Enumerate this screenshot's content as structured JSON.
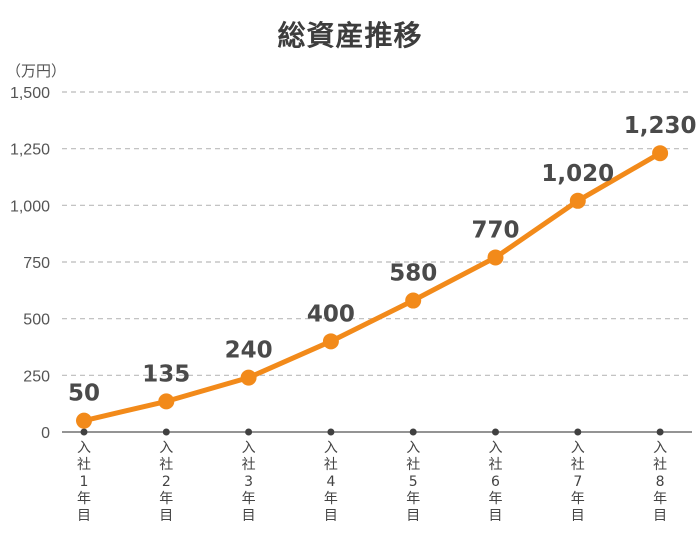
{
  "chart_data": {
    "type": "line",
    "title": "総資産推移",
    "unit_label": "（万円）",
    "categories": [
      [
        "入",
        "社",
        "1",
        "年",
        "目"
      ],
      [
        "入",
        "社",
        "2",
        "年",
        "目"
      ],
      [
        "入",
        "社",
        "3",
        "年",
        "目"
      ],
      [
        "入",
        "社",
        "4",
        "年",
        "目"
      ],
      [
        "入",
        "社",
        "5",
        "年",
        "目"
      ],
      [
        "入",
        "社",
        "6",
        "年",
        "目"
      ],
      [
        "入",
        "社",
        "7",
        "年",
        "目"
      ],
      [
        "入",
        "社",
        "8",
        "年",
        "目"
      ]
    ],
    "values": [
      50,
      135,
      240,
      400,
      580,
      770,
      1020,
      1230
    ],
    "data_labels": [
      "50",
      "135",
      "240",
      "400",
      "580",
      "770",
      "1,020",
      "1,230"
    ],
    "y_ticks": [
      0,
      250,
      500,
      750,
      1000,
      1250,
      1500
    ],
    "y_tick_labels": [
      "0",
      "250",
      "500",
      "750",
      "1,000",
      "1,250",
      "1,500"
    ],
    "ylim": [
      0,
      1500
    ],
    "grid": true,
    "line_color": "#f28a1a",
    "grid_color": "#bbbbbb",
    "axis_dot_color": "#404040"
  }
}
